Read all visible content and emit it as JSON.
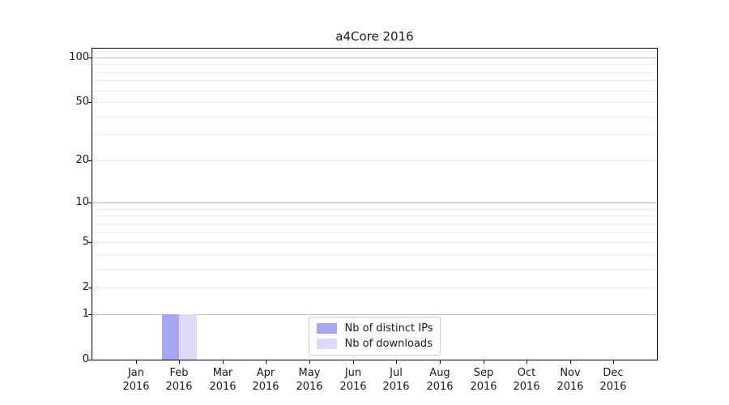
{
  "chart_data": {
    "type": "bar",
    "title": "a4Core 2016",
    "categories": [
      {
        "label": "Jan",
        "year": "2016"
      },
      {
        "label": "Feb",
        "year": "2016"
      },
      {
        "label": "Mar",
        "year": "2016"
      },
      {
        "label": "Apr",
        "year": "2016"
      },
      {
        "label": "May",
        "year": "2016"
      },
      {
        "label": "Jun",
        "year": "2016"
      },
      {
        "label": "Jul",
        "year": "2016"
      },
      {
        "label": "Aug",
        "year": "2016"
      },
      {
        "label": "Sep",
        "year": "2016"
      },
      {
        "label": "Oct",
        "year": "2016"
      },
      {
        "label": "Nov",
        "year": "2016"
      },
      {
        "label": "Dec",
        "year": "2016"
      }
    ],
    "series": [
      {
        "name": "Nb of distinct IPs",
        "color": "#a6a6f2",
        "values": [
          0,
          1,
          0,
          0,
          0,
          0,
          0,
          0,
          0,
          0,
          0,
          0
        ]
      },
      {
        "name": "Nb of downloads",
        "color": "#dcdcf9",
        "values": [
          0,
          1,
          0,
          0,
          0,
          0,
          0,
          0,
          0,
          0,
          0,
          0
        ]
      }
    ],
    "y_axis": {
      "scale": "log10(1+value)",
      "tick_values": [
        0,
        1,
        2,
        5,
        10,
        20,
        50,
        100
      ],
      "tick_labels": [
        "0",
        "1",
        "2",
        "5",
        "10",
        "20",
        "50",
        "100"
      ],
      "max": 114.6,
      "major_grid_values": [
        1,
        10,
        100
      ],
      "minor_grid_values": [
        2,
        3,
        4,
        5,
        6,
        7,
        8,
        9,
        20,
        30,
        40,
        50,
        60,
        70,
        80,
        90,
        110
      ]
    },
    "xlabel": "",
    "ylabel": "",
    "legend": {
      "position": "lower center"
    },
    "grid": "horizontal only",
    "colors": {
      "major_grid": "#bdbdbd",
      "minor_grid": "#ececec",
      "axis": "#000000",
      "text": "#1a1a1a",
      "legend_border": "#cccccc",
      "background": "#ffffff"
    }
  }
}
